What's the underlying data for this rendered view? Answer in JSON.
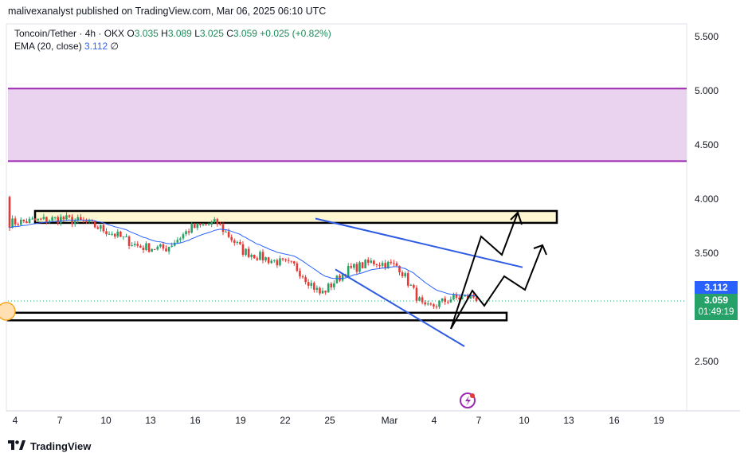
{
  "header": {
    "publisher": "malivexanalyst published on TradingView.com, Mar 06, 2025 06:10 UTC"
  },
  "legend": {
    "symbol": "Toncoin/Tether · 4h · OKX",
    "open_label": "O",
    "open": "3.035",
    "high_label": "H",
    "high": "3.089",
    "low_label": "L",
    "low": "3.025",
    "close_label": "C",
    "close": "3.059",
    "change": "+0.025 (+0.82%)",
    "ema_label": "EMA (20, close)",
    "ema_value": "3.112",
    "ema_suffix": "∅"
  },
  "price_tags": {
    "ema": "3.112",
    "last": "3.059",
    "countdown": "01:49:19"
  },
  "footer": {
    "brand": "TradingView"
  },
  "colors": {
    "up": "#26a269",
    "down": "#e53935",
    "ema": "#2962ff",
    "zone_fill": "#e9d3ee",
    "zone_border": "#9c27b0",
    "box_fill": "#fff7d1",
    "wedge": "#2d5be3"
  },
  "chart_data": {
    "type": "candlestick",
    "y_ticks": [
      "5.500",
      "5.000",
      "4.500",
      "4.000",
      "3.500",
      "2.500"
    ],
    "ylim": [
      2.2,
      5.7
    ],
    "x_ticks": [
      "4",
      "7",
      "10",
      "13",
      "16",
      "19",
      "22",
      "25",
      "Mar",
      "4",
      "7",
      "10",
      "13",
      "16",
      "19"
    ],
    "ema_period": 20,
    "last_price": 3.059,
    "ema_last": 3.112,
    "supply_zone": [
      4.35,
      5.02
    ],
    "resistance_box": [
      3.78,
      3.89
    ],
    "support_box": [
      2.88,
      2.95
    ],
    "price_path": [
      [
        4.02,
        3.78
      ],
      [
        3.84,
        3.8
      ],
      [
        3.86,
        3.82
      ],
      [
        3.8,
        3.78
      ],
      [
        3.77,
        3.68
      ],
      [
        3.63,
        3.56
      ],
      [
        3.55,
        3.54
      ],
      [
        3.64,
        3.73
      ],
      [
        3.81,
        3.78
      ],
      [
        3.7,
        3.52
      ],
      [
        3.35,
        3.44
      ],
      [
        3.52,
        3.38
      ],
      [
        3.22,
        3.12
      ],
      [
        3.36,
        3.34
      ],
      [
        3.25,
        3.42
      ],
      [
        3.55,
        3.38
      ],
      [
        3.18,
        2.98
      ],
      [
        3.02,
        3.08
      ],
      [
        3.06,
        3.1
      ]
    ]
  }
}
